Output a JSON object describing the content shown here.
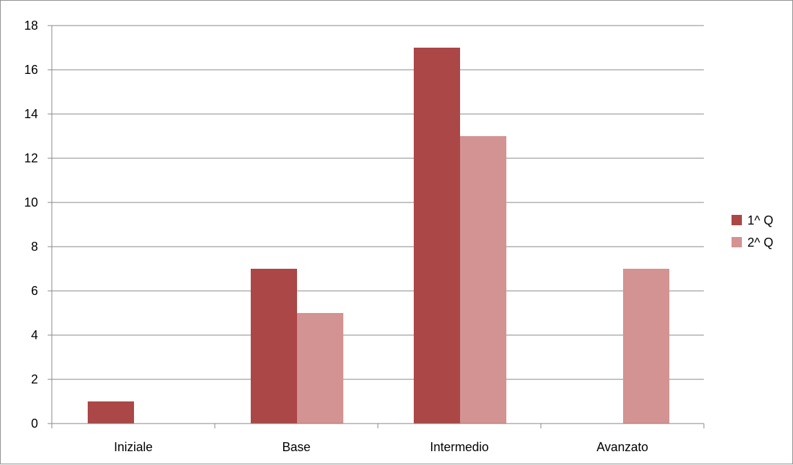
{
  "chart_data": {
    "type": "bar",
    "categories": [
      "Iniziale",
      "Base",
      "Intermedio",
      "Avanzato"
    ],
    "series": [
      {
        "name": "1^ Q",
        "color": "#ab4746",
        "values": [
          1,
          7,
          17,
          0
        ]
      },
      {
        "name": "2^ Q",
        "color": "#d39392",
        "values": [
          0,
          5,
          13,
          7
        ]
      }
    ],
    "ylim": [
      0,
      18
    ],
    "yticks": [
      0,
      2,
      4,
      6,
      8,
      10,
      12,
      14,
      16,
      18
    ],
    "grid": true,
    "legend_position": "right",
    "title": "",
    "xlabel": "",
    "ylabel": ""
  }
}
